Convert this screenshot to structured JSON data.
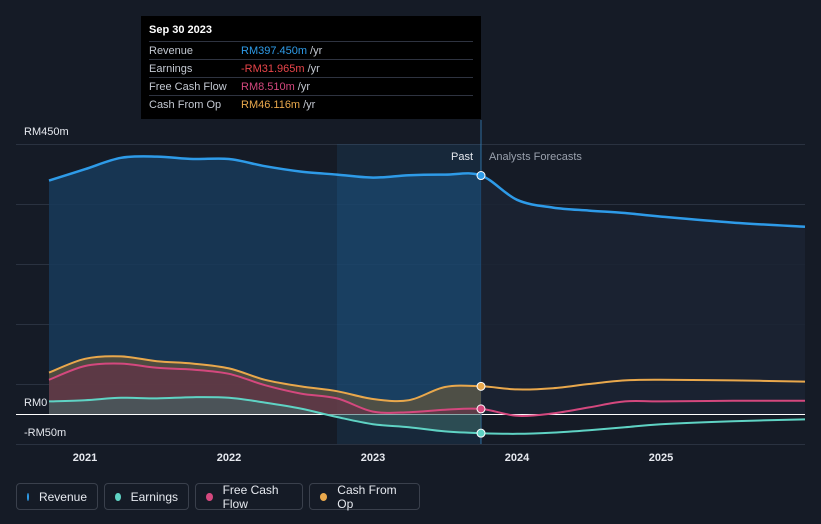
{
  "tooltip": {
    "date": "Sep 30 2023",
    "rows": [
      {
        "label": "Revenue",
        "value": "RM397.450m",
        "unit": "/yr",
        "color": "#2e9be8"
      },
      {
        "label": "Earnings",
        "value": "-RM31.965m",
        "unit": "/yr",
        "color": "#e8454a"
      },
      {
        "label": "Free Cash Flow",
        "value": "RM8.510m",
        "unit": "/yr",
        "color": "#d4487e"
      },
      {
        "label": "Cash From Op",
        "value": "RM46.116m",
        "unit": "/yr",
        "color": "#e9a84c"
      }
    ]
  },
  "legend": [
    {
      "label": "Revenue",
      "color": "#2e9be8"
    },
    {
      "label": "Earnings",
      "color": "#5fd3c4"
    },
    {
      "label": "Free Cash Flow",
      "color": "#d4487e"
    },
    {
      "label": "Cash From Op",
      "color": "#e9a84c"
    }
  ],
  "chart_data": {
    "type": "line",
    "title": "",
    "ylim": [
      -50,
      450
    ],
    "y_labels": [
      {
        "value": 450,
        "label": "RM450m"
      },
      {
        "value": 0,
        "label": "RM0"
      },
      {
        "value": -50,
        "label": "-RM50m"
      }
    ],
    "x_range": [
      2020.58,
      2026.0
    ],
    "x_ticks": [
      {
        "value": 2021,
        "label": "2021"
      },
      {
        "value": 2022,
        "label": "2022"
      },
      {
        "value": 2023,
        "label": "2023"
      },
      {
        "value": 2024,
        "label": "2024"
      },
      {
        "value": 2025,
        "label": "2025"
      }
    ],
    "past_label": "Past",
    "forecast_label": "Analysts Forecasts",
    "past_end": 2023.75,
    "highlight_start": 2022.75,
    "series": [
      {
        "name": "Revenue",
        "color": "#2e9be8",
        "points": [
          [
            2020.75,
            389
          ],
          [
            2021.0,
            408
          ],
          [
            2021.25,
            427
          ],
          [
            2021.5,
            429
          ],
          [
            2021.75,
            425
          ],
          [
            2022.0,
            425
          ],
          [
            2022.25,
            413
          ],
          [
            2022.5,
            404
          ],
          [
            2022.75,
            399
          ],
          [
            2023.0,
            394
          ],
          [
            2023.25,
            398
          ],
          [
            2023.5,
            399
          ],
          [
            2023.75,
            397.45
          ],
          [
            2024.0,
            357
          ],
          [
            2024.25,
            344
          ],
          [
            2024.5,
            339
          ],
          [
            2024.75,
            335
          ],
          [
            2025.0,
            329
          ],
          [
            2025.5,
            319
          ],
          [
            2026.0,
            312
          ]
        ]
      },
      {
        "name": "Earnings",
        "color": "#5fd3c4",
        "points": [
          [
            2020.75,
            21
          ],
          [
            2021.0,
            23
          ],
          [
            2021.25,
            27
          ],
          [
            2021.5,
            26
          ],
          [
            2021.75,
            28
          ],
          [
            2022.0,
            27
          ],
          [
            2022.25,
            19
          ],
          [
            2022.5,
            9
          ],
          [
            2022.75,
            -5
          ],
          [
            2023.0,
            -17
          ],
          [
            2023.25,
            -22
          ],
          [
            2023.5,
            -29
          ],
          [
            2023.75,
            -31.965
          ],
          [
            2024.0,
            -33
          ],
          [
            2024.25,
            -31
          ],
          [
            2024.5,
            -27
          ],
          [
            2024.75,
            -22
          ],
          [
            2025.0,
            -17
          ],
          [
            2025.5,
            -12
          ],
          [
            2026.0,
            -9
          ]
        ]
      },
      {
        "name": "Free Cash Flow",
        "color": "#d4487e",
        "points": [
          [
            2020.75,
            57
          ],
          [
            2021.0,
            80
          ],
          [
            2021.25,
            84
          ],
          [
            2021.5,
            77
          ],
          [
            2021.75,
            74
          ],
          [
            2022.0,
            67
          ],
          [
            2022.25,
            48
          ],
          [
            2022.5,
            34
          ],
          [
            2022.75,
            26
          ],
          [
            2023.0,
            4
          ],
          [
            2023.25,
            3
          ],
          [
            2023.5,
            7
          ],
          [
            2023.75,
            8.51
          ],
          [
            2024.0,
            -3
          ],
          [
            2024.25,
            1
          ],
          [
            2024.5,
            11
          ],
          [
            2024.75,
            21
          ],
          [
            2025.0,
            21
          ],
          [
            2025.5,
            22
          ],
          [
            2026.0,
            22
          ]
        ]
      },
      {
        "name": "Cash From Op",
        "color": "#e9a84c",
        "points": [
          [
            2020.75,
            69
          ],
          [
            2021.0,
            92
          ],
          [
            2021.25,
            96
          ],
          [
            2021.5,
            88
          ],
          [
            2021.75,
            84
          ],
          [
            2022.0,
            76
          ],
          [
            2022.25,
            57
          ],
          [
            2022.5,
            46
          ],
          [
            2022.75,
            38
          ],
          [
            2023.0,
            25
          ],
          [
            2023.25,
            23
          ],
          [
            2023.5,
            45
          ],
          [
            2023.75,
            46.116
          ],
          [
            2024.0,
            41
          ],
          [
            2024.25,
            43
          ],
          [
            2024.5,
            50
          ],
          [
            2024.75,
            56
          ],
          [
            2025.0,
            57
          ],
          [
            2025.5,
            56
          ],
          [
            2026.0,
            54
          ]
        ]
      }
    ]
  }
}
